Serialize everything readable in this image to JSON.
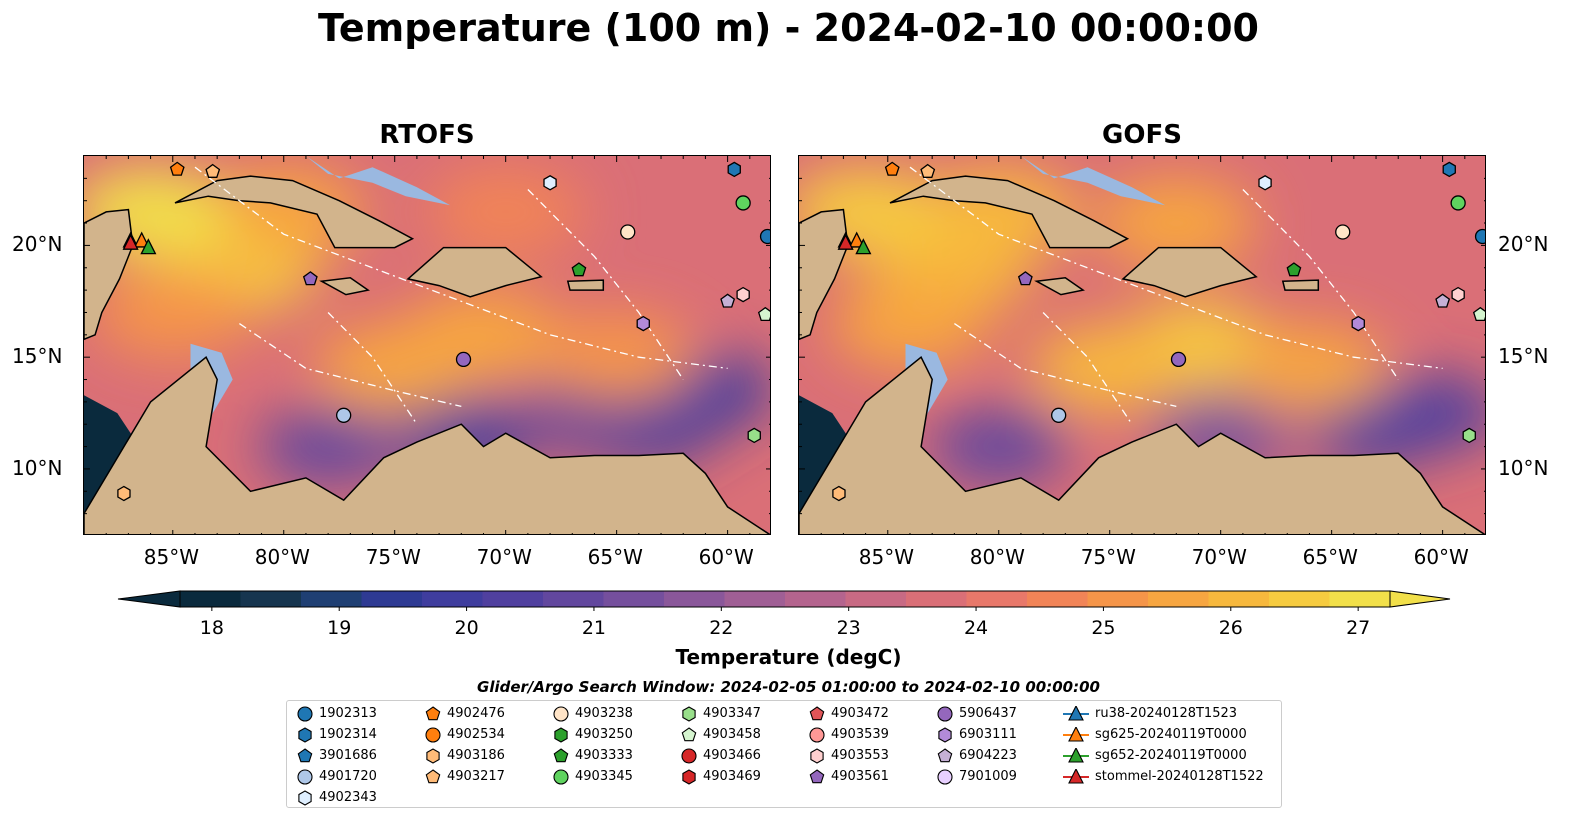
{
  "title": "Temperature (100 m) - 2024-02-10 00:00:00",
  "panels": [
    {
      "title": "RTOFS"
    },
    {
      "title": "GOFS"
    }
  ],
  "x_tick_labels": [
    "85°W",
    "80°W",
    "75°W",
    "70°W",
    "65°W",
    "60°W"
  ],
  "y_tick_labels": [
    "20°N",
    "15°N",
    "10°N"
  ],
  "colorbar": {
    "label": "Temperature (degC)",
    "tick_labels": [
      "18",
      "19",
      "20",
      "21",
      "22",
      "23",
      "24",
      "25",
      "26",
      "27"
    ],
    "colors": [
      "#0a2a3d",
      "#16354f",
      "#1f3f73",
      "#2e3a93",
      "#3f3d9e",
      "#50409f",
      "#62479e",
      "#754f9d",
      "#8a579a",
      "#a05f95",
      "#b4648e",
      "#c86a84",
      "#da6f77",
      "#e8786a",
      "#f18457",
      "#f59549",
      "#f7a641",
      "#f7b83d",
      "#f6cb40",
      "#f2e04a"
    ]
  },
  "legend": {
    "title": "Glider/Argo Search Window: 2024-02-05 01:00:00 to 2024-02-10 00:00:00",
    "columns": [
      [
        {
          "label": "1902313",
          "marker": "circle",
          "color": "#1f77b4"
        },
        {
          "label": "1902314",
          "marker": "hexagon",
          "color": "#1f77b4"
        },
        {
          "label": "3901686",
          "marker": "pentagon",
          "color": "#1f77b4"
        },
        {
          "label": "4901720",
          "marker": "circle",
          "color": "#aec7e8"
        },
        {
          "label": "4902343",
          "marker": "hexagon",
          "color": "#dfefff"
        }
      ],
      [
        {
          "label": "4902476",
          "marker": "pentagon",
          "color": "#ff7f0e"
        },
        {
          "label": "4902534",
          "marker": "circle",
          "color": "#ff7f0e"
        },
        {
          "label": "4903186",
          "marker": "hexagon",
          "color": "#ffbb78"
        },
        {
          "label": "4903217",
          "marker": "pentagon",
          "color": "#ffbb78"
        }
      ],
      [
        {
          "label": "4903238",
          "marker": "circle",
          "color": "#ffe4c7"
        },
        {
          "label": "4903250",
          "marker": "hexagon",
          "color": "#2ca02c"
        },
        {
          "label": "4903333",
          "marker": "pentagon",
          "color": "#2ca02c"
        },
        {
          "label": "4903345",
          "marker": "circle",
          "color": "#5fd35f"
        }
      ],
      [
        {
          "label": "4903347",
          "marker": "hexagon",
          "color": "#98df8a"
        },
        {
          "label": "4903458",
          "marker": "pentagon",
          "color": "#d5f5cf"
        },
        {
          "label": "4903466",
          "marker": "circle",
          "color": "#d62728"
        },
        {
          "label": "4903469",
          "marker": "hexagon",
          "color": "#d62728"
        }
      ],
      [
        {
          "label": "4903472",
          "marker": "pentagon",
          "color": "#e05558"
        },
        {
          "label": "4903539",
          "marker": "circle",
          "color": "#ff9896"
        },
        {
          "label": "4903553",
          "marker": "hexagon",
          "color": "#ffd0cf"
        },
        {
          "label": "4903561",
          "marker": "pentagon",
          "color": "#9467bd"
        }
      ],
      [
        {
          "label": "5906437",
          "marker": "circle",
          "color": "#9467bd"
        },
        {
          "label": "6903111",
          "marker": "hexagon",
          "color": "#b28ad8"
        },
        {
          "label": "6904223",
          "marker": "pentagon",
          "color": "#c5b0d5"
        },
        {
          "label": "7901009",
          "marker": "circle",
          "color": "#e8d0ff"
        }
      ],
      [
        {
          "label": "ru38-20240128T1523",
          "marker": "triangle",
          "color": "#1f77b4"
        },
        {
          "label": "sg625-20240119T0000",
          "marker": "triangle",
          "color": "#ff7f0e"
        },
        {
          "label": "sg652-20240119T0000",
          "marker": "triangle",
          "color": "#2ca02c"
        },
        {
          "label": "stommel-20240128T1522",
          "marker": "triangle",
          "color": "#d62728"
        }
      ]
    ]
  },
  "chart_data": {
    "type": "heatmap",
    "title": "Temperature (100 m) - 2024-02-10 00:00:00",
    "subplots": [
      "RTOFS",
      "GOFS"
    ],
    "variable": "Temperature (degC)",
    "depth_m": 100,
    "xlim": [
      -89,
      -58
    ],
    "ylim": [
      7,
      24
    ],
    "colorbar_range": [
      18,
      27
    ],
    "map_colors": {
      "land": "#d2b48c",
      "shelf": "#9ab8e0",
      "deep_cold": "#0a2a3d"
    },
    "markers": [
      {
        "id": "1902313",
        "lon": -58.2,
        "lat": 20.4
      },
      {
        "id": "1902314",
        "lon": -59.7,
        "lat": 23.4
      },
      {
        "id": "4902476",
        "lon": -84.8,
        "lat": 23.4
      },
      {
        "id": "4903186",
        "lon": -87.2,
        "lat": 8.9
      },
      {
        "id": "4903217",
        "lon": -83.2,
        "lat": 23.3
      },
      {
        "id": "4902343",
        "lon": -68.0,
        "lat": 22.8
      },
      {
        "id": "4903238",
        "lon": -64.5,
        "lat": 20.6
      },
      {
        "id": "4903345",
        "lon": -59.3,
        "lat": 21.9
      },
      {
        "id": "4903333",
        "lon": -66.7,
        "lat": 18.9
      },
      {
        "id": "4903561",
        "lon": -78.8,
        "lat": 18.5
      },
      {
        "id": "6903111",
        "lon": -63.8,
        "lat": 16.5
      },
      {
        "id": "6904223",
        "lon": -60.0,
        "lat": 17.5
      },
      {
        "id": "4903553",
        "lon": -59.3,
        "lat": 17.8
      },
      {
        "id": "4903458",
        "lon": -58.3,
        "lat": 16.9
      },
      {
        "id": "4903347",
        "lon": -58.8,
        "lat": 11.5
      },
      {
        "id": "5906437",
        "lon": -71.9,
        "lat": 14.9
      },
      {
        "id": "4901720",
        "lon": -77.3,
        "lat": 12.4
      },
      {
        "id": "ru38-20240128T1523",
        "lon": -86.9,
        "lat": 20.2
      },
      {
        "id": "sg625-20240119T0000",
        "lon": -86.4,
        "lat": 20.2
      },
      {
        "id": "sg652-20240119T0000",
        "lon": -86.1,
        "lat": 19.9
      },
      {
        "id": "stommel-20240128T1522",
        "lon": -86.9,
        "lat": 20.1
      }
    ]
  }
}
